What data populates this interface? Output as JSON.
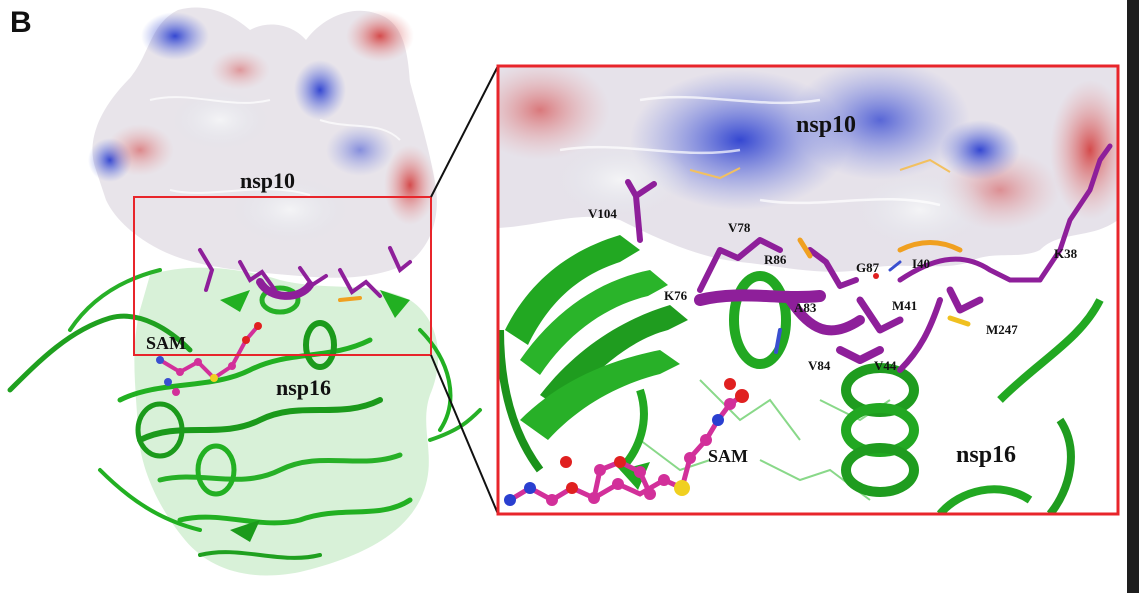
{
  "figure": {
    "panel_label": "B"
  },
  "overview": {
    "labels": {
      "nsp10": "nsp10",
      "sam": "SAM",
      "nsp16": "nsp16"
    }
  },
  "zoom": {
    "labels": {
      "nsp10": "nsp10",
      "sam": "SAM",
      "nsp16": "nsp16"
    },
    "residues": [
      {
        "name": "V104"
      },
      {
        "name": "V78"
      },
      {
        "name": "R86"
      },
      {
        "name": "G87"
      },
      {
        "name": "I40"
      },
      {
        "name": "K38"
      },
      {
        "name": "K76"
      },
      {
        "name": "A83"
      },
      {
        "name": "M41"
      },
      {
        "name": "M247"
      },
      {
        "name": "V84"
      },
      {
        "name": "V44"
      }
    ]
  },
  "colors": {
    "highlight_box": "#e8252b",
    "cartoon_green": "#22b022",
    "residue_purple": "#8e1f9a",
    "positive_blue": "#3a4fd0",
    "negative_red": "#d94a4a",
    "ligand_magenta": "#d2309a"
  }
}
